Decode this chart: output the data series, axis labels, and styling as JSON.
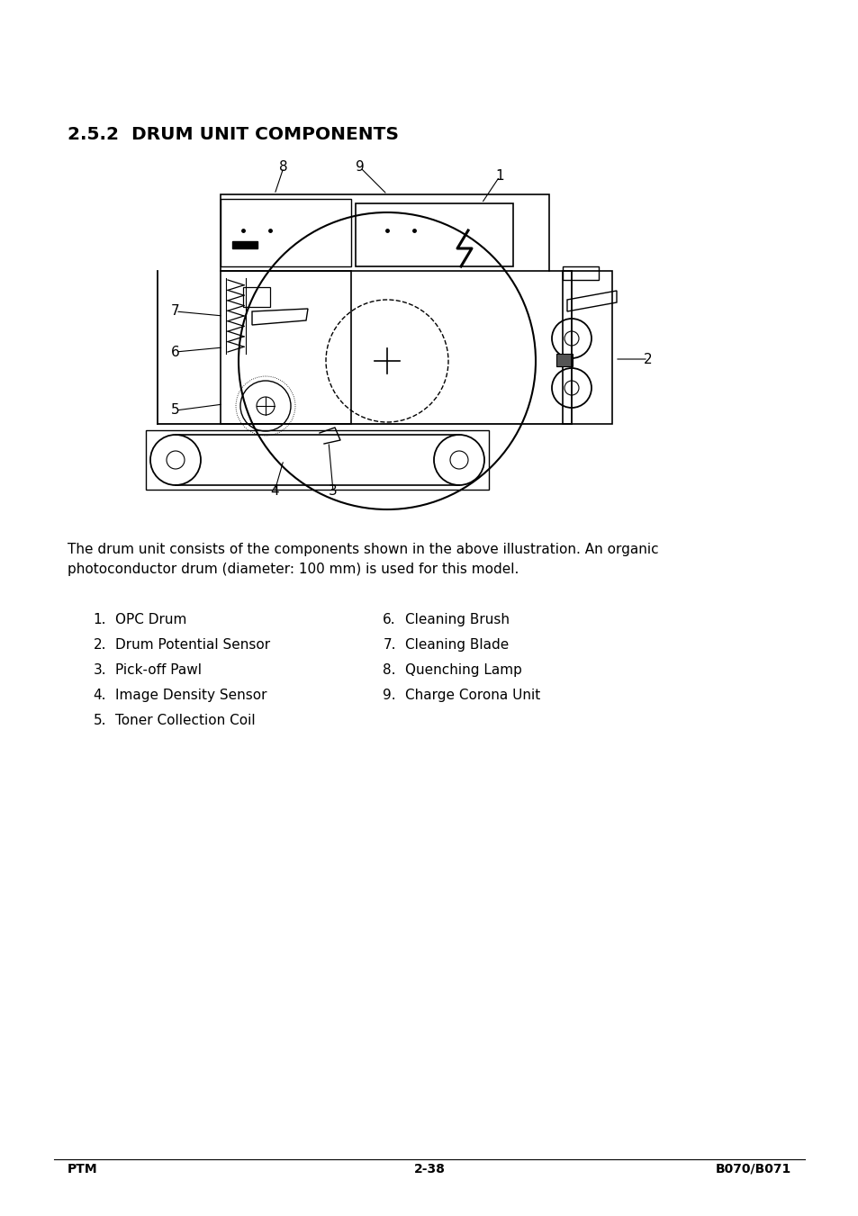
{
  "title": "2.5.2  DRUM UNIT COMPONENTS",
  "description_line1": "The drum unit consists of the components shown in the above illustration. An organic",
  "description_line2": "photoconductor drum (diameter: 100 mm) is used for this model.",
  "left_list": [
    [
      "1.",
      "OPC Drum"
    ],
    [
      "2.",
      "Drum Potential Sensor"
    ],
    [
      "3.",
      "Pick-off Pawl"
    ],
    [
      "4.",
      "Image Density Sensor"
    ],
    [
      "5.",
      "Toner Collection Coil"
    ]
  ],
  "right_list": [
    [
      "6.",
      "Cleaning Brush"
    ],
    [
      "7.",
      "Cleaning Blade"
    ],
    [
      "8.",
      "Quenching Lamp"
    ],
    [
      "9.",
      "Charge Corona Unit"
    ]
  ],
  "footer_left": "PTM",
  "footer_center": "2-38",
  "footer_right": "B070/B071",
  "bg_color": "#ffffff",
  "text_color": "#000000"
}
